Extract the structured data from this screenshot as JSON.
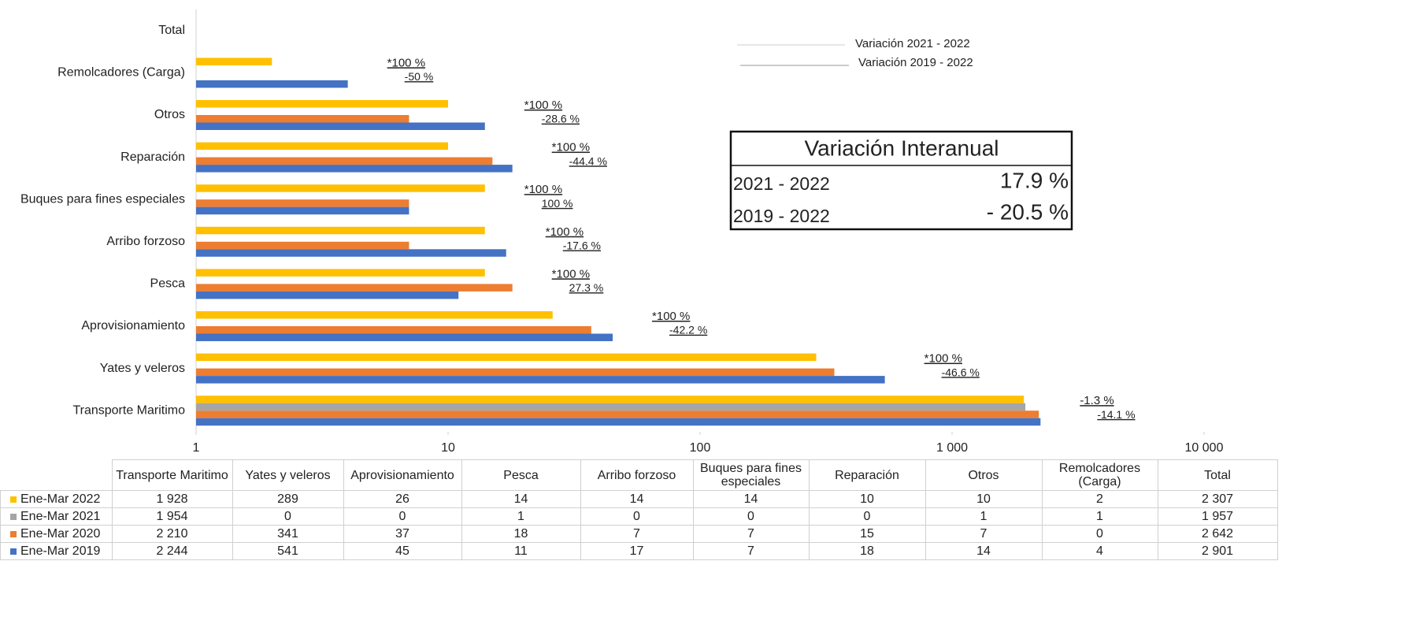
{
  "chart_data": {
    "type": "bar",
    "orientation": "horizontal",
    "categories": [
      "Transporte Maritimo",
      "Yates y veleros",
      "Aprovisionamiento",
      "Pesca",
      "Arribo forzoso",
      "Buques para fines especiales",
      "Reparación",
      "Otros",
      "Remolcadores (Carga)",
      "Total"
    ],
    "series": [
      {
        "name": "Ene-Mar 2022",
        "color": "#ffc000",
        "values": [
          1928,
          289,
          26,
          14,
          14,
          14,
          10,
          10,
          2,
          null
        ]
      },
      {
        "name": "Ene-Mar 2021",
        "color": "#a5a5a5",
        "values": [
          1954,
          0,
          0,
          1,
          0,
          0,
          0,
          1,
          1,
          null
        ]
      },
      {
        "name": "Ene-Mar 2020",
        "color": "#ed7d31",
        "values": [
          2210,
          341,
          37,
          18,
          7,
          7,
          15,
          7,
          0,
          null
        ]
      },
      {
        "name": "Ene-Mar 2019",
        "color": "#4472c4",
        "values": [
          2244,
          541,
          45,
          11,
          17,
          7,
          18,
          14,
          4,
          null
        ]
      }
    ],
    "xlim": [
      1,
      10000
    ],
    "xticks": [
      1,
      10,
      100,
      {
        "value": 1000,
        "label": "1 000"
      },
      {
        "value": 10000,
        "label": "10 000"
      }
    ],
    "log_scale": true,
    "variation_2021_2022": {
      "name": "Variación 2021 - 2022",
      "color": "#c0804a",
      "labels": [
        "-1.3 %",
        "*100 %",
        "*100 %",
        "*100 %",
        "*100 %",
        "*100 %",
        "*100 %",
        "*100 %",
        "*100 %",
        null
      ]
    },
    "variation_2019_2022": {
      "name": "Variación 2019 - 2022",
      "color": "#3a9ac0",
      "labels": [
        "-14.1 %",
        "-46.6 %",
        "-42.2 %",
        "27.3 %",
        "-17.6 %",
        "100 %",
        "-44.4 %",
        "-28.6 %",
        "-50 %",
        null
      ]
    },
    "summary_box": {
      "title": "Variación Interanual",
      "rows": [
        {
          "label": "2021 - 2022",
          "value": "17.9 %"
        },
        {
          "label": "2019 - 2022",
          "value": "- 20.5 %"
        }
      ]
    },
    "table": {
      "columns": [
        "Transporte Maritimo",
        "Yates y veleros",
        "Aprovisionamiento",
        "Pesca",
        "Arribo forzoso",
        "Buques para fines especiales",
        "Reparación",
        "Otros",
        "Remolcadores (Carga)",
        "Total"
      ],
      "rows": [
        {
          "label": "Ene-Mar 2022",
          "values": [
            "1 928",
            "289",
            "26",
            "14",
            "14",
            "14",
            "10",
            "10",
            "2",
            "2 307"
          ]
        },
        {
          "label": "Ene-Mar 2021",
          "values": [
            "1 954",
            "0",
            "0",
            "1",
            "0",
            "0",
            "0",
            "1",
            "1",
            "1 957"
          ]
        },
        {
          "label": "Ene-Mar 2020",
          "values": [
            "2 210",
            "341",
            "37",
            "18",
            "7",
            "7",
            "15",
            "7",
            "0",
            "2 642"
          ]
        },
        {
          "label": "Ene-Mar 2019",
          "values": [
            "2 244",
            "541",
            "45",
            "11",
            "17",
            "7",
            "18",
            "14",
            "4",
            "2 901"
          ]
        }
      ]
    }
  }
}
